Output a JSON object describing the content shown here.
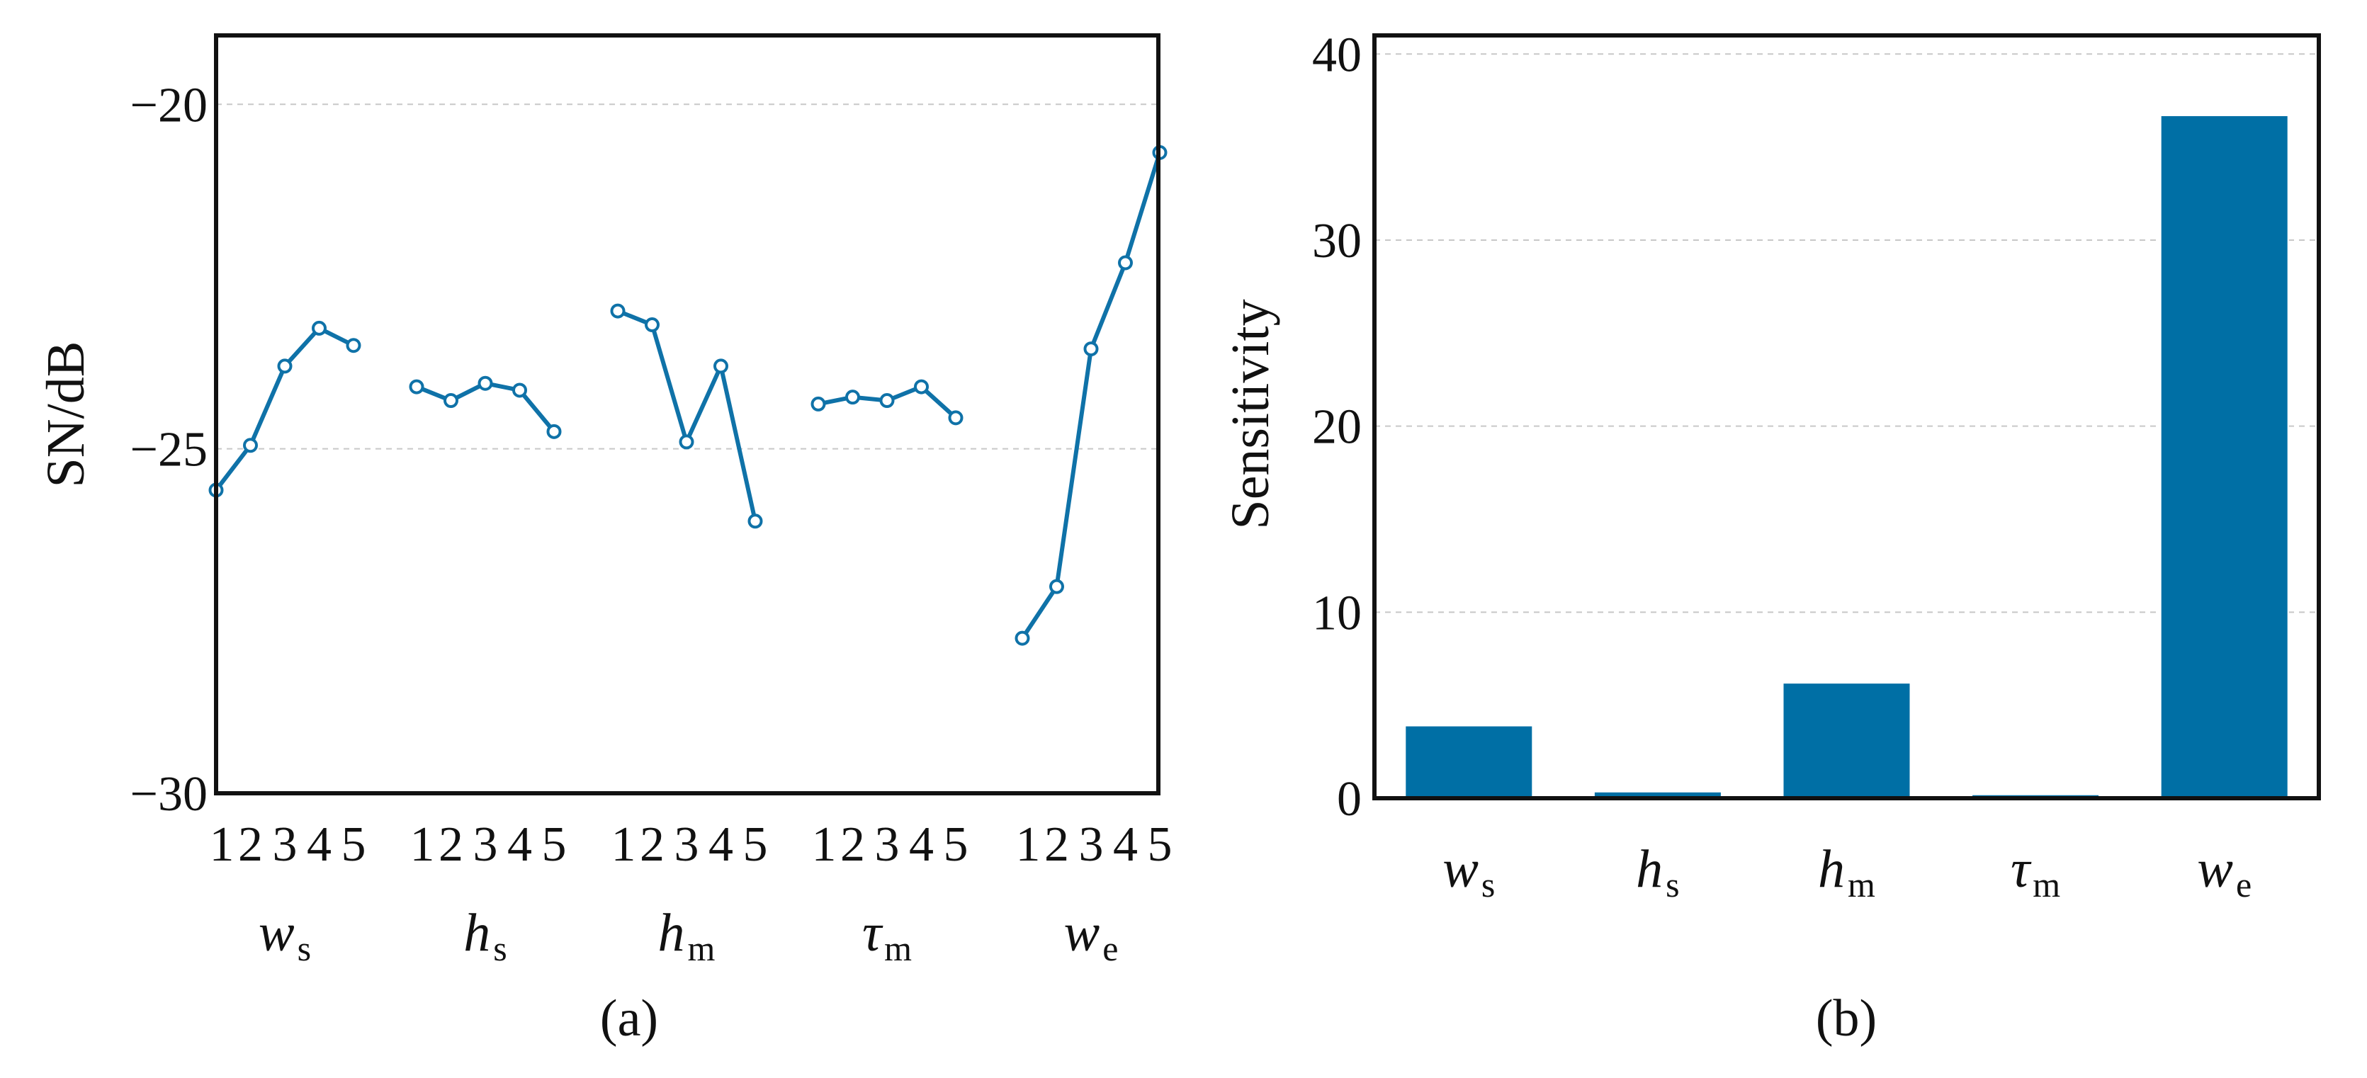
{
  "colors": {
    "series": "#0f72a8",
    "bar": "#006fa5",
    "grid": "#c8c8c8",
    "axis": "#111111"
  },
  "chart_data": [
    {
      "type": "line",
      "caption": "(a)",
      "ylabel": "SN/dB",
      "ylim": [
        -30,
        -19
      ],
      "yticks": [
        "−20",
        "−25",
        "−30"
      ],
      "ytick_values": [
        -20,
        -25,
        -30
      ],
      "grid": "horizontal dashed",
      "level_labels": [
        "1",
        "2",
        "3",
        "4",
        "5"
      ],
      "groups": [
        {
          "base": "w",
          "sub": "s",
          "values": [
            -25.6,
            -24.95,
            -23.8,
            -23.25,
            -23.5
          ]
        },
        {
          "base": "h",
          "sub": "s",
          "values": [
            -24.1,
            -24.3,
            -24.05,
            -24.15,
            -24.75
          ]
        },
        {
          "base": "h",
          "sub": "m",
          "values": [
            -23.0,
            -23.2,
            -24.9,
            -23.8,
            -26.05
          ]
        },
        {
          "base": "τ",
          "sub": "m",
          "values": [
            -24.35,
            -24.25,
            -24.3,
            -24.1,
            -24.55
          ]
        },
        {
          "base": "w",
          "sub": "e",
          "values": [
            -27.75,
            -27.0,
            -23.55,
            -22.3,
            -20.7
          ]
        }
      ]
    },
    {
      "type": "bar",
      "caption": "(b)",
      "ylabel": "Sensitivity",
      "ylim": [
        0,
        41
      ],
      "yticks": [
        "0",
        "10",
        "20",
        "30",
        "40"
      ],
      "ytick_values": [
        0,
        10,
        20,
        30,
        40
      ],
      "grid": "horizontal dashed",
      "categories": [
        {
          "base": "w",
          "sub": "s"
        },
        {
          "base": "h",
          "sub": "s"
        },
        {
          "base": "h",
          "sub": "m"
        },
        {
          "base": "τ",
          "sub": "m"
        },
        {
          "base": "w",
          "sub": "e"
        }
      ],
      "values": [
        3.9,
        0.35,
        6.2,
        0.2,
        36.7
      ]
    }
  ]
}
